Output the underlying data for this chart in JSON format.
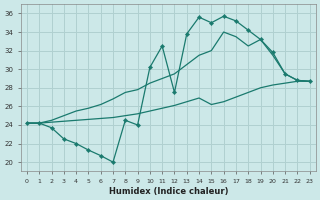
{
  "xlabel": "Humidex (Indice chaleur)",
  "background_color": "#cce8e8",
  "grid_color": "#b0d0d0",
  "line_color": "#1a7a6e",
  "xlim": [
    -0.5,
    23.5
  ],
  "ylim": [
    19,
    37
  ],
  "xticks": [
    0,
    1,
    2,
    3,
    4,
    5,
    6,
    7,
    8,
    9,
    10,
    11,
    12,
    13,
    14,
    15,
    16,
    17,
    18,
    19,
    20,
    21,
    22,
    23
  ],
  "yticks": [
    20,
    22,
    24,
    26,
    28,
    30,
    32,
    34,
    36
  ],
  "line1_x": [
    0,
    1,
    2,
    3,
    4,
    5,
    6,
    7,
    8,
    9,
    10,
    11,
    12,
    13,
    14,
    15,
    16,
    17,
    18,
    19,
    20,
    21,
    22,
    23
  ],
  "line1_y": [
    24.2,
    24.2,
    23.7,
    22.5,
    22.0,
    21.3,
    20.7,
    20.0,
    24.5,
    24.0,
    30.2,
    32.5,
    27.5,
    33.8,
    35.6,
    35.0,
    35.7,
    35.2,
    34.2,
    33.2,
    31.8,
    29.5,
    28.8,
    28.7
  ],
  "line2_x": [
    0,
    1,
    2,
    3,
    4,
    5,
    6,
    7,
    8,
    9,
    10,
    11,
    12,
    13,
    14,
    15,
    16,
    17,
    18,
    19,
    20,
    21,
    22,
    23
  ],
  "line2_y": [
    24.2,
    24.2,
    24.5,
    25.0,
    25.5,
    25.8,
    26.2,
    26.8,
    27.5,
    27.8,
    28.5,
    29.0,
    29.5,
    30.5,
    31.5,
    32.0,
    34.0,
    33.5,
    32.5,
    33.2,
    31.5,
    29.5,
    28.8,
    28.7
  ],
  "line3_x": [
    0,
    1,
    2,
    3,
    4,
    5,
    6,
    7,
    8,
    9,
    10,
    11,
    12,
    13,
    14,
    15,
    16,
    17,
    18,
    19,
    20,
    21,
    22,
    23
  ],
  "line3_y": [
    24.2,
    24.2,
    24.3,
    24.4,
    24.5,
    24.6,
    24.7,
    24.8,
    25.0,
    25.2,
    25.5,
    25.8,
    26.1,
    26.5,
    26.9,
    26.2,
    26.5,
    27.0,
    27.5,
    28.0,
    28.3,
    28.5,
    28.7,
    28.7
  ]
}
